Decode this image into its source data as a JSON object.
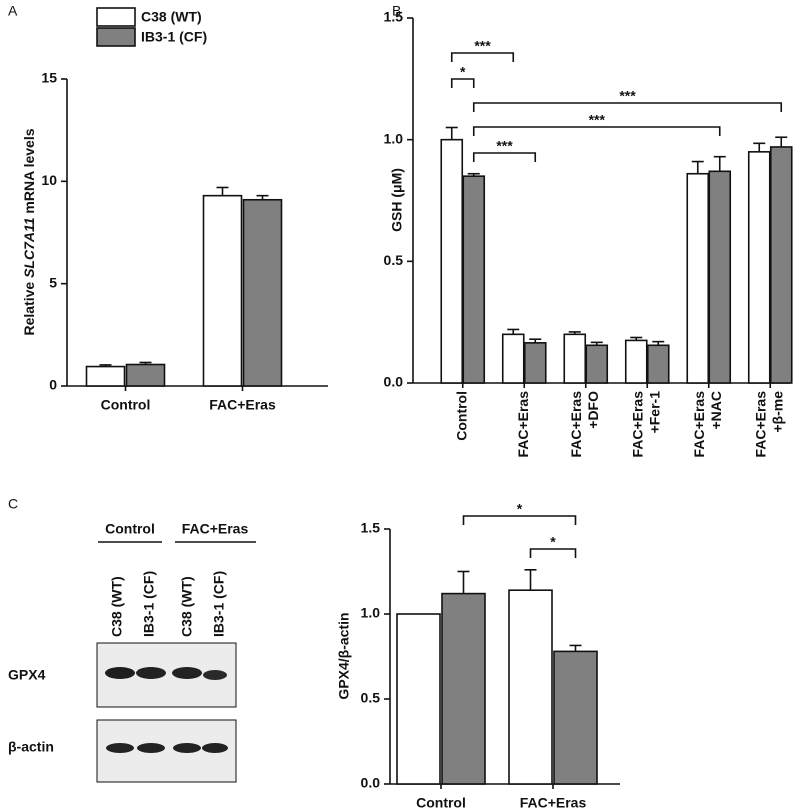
{
  "panel_labels": [
    "A",
    "B",
    "C"
  ],
  "chart_data": [
    {
      "type": "bar",
      "ylabel_parts": [
        "Relative ",
        "SLC7A11",
        " mRNA levels"
      ],
      "categories": [
        "Control",
        "FAC+Eras"
      ],
      "series": [
        {
          "name": "C38 (WT)",
          "color": "#ffffff",
          "values": [
            0.95,
            9.3
          ],
          "errors": [
            0.08,
            0.4
          ]
        },
        {
          "name": "IB3-1 (CF)",
          "color": "#808080",
          "values": [
            1.05,
            9.1
          ],
          "errors": [
            0.1,
            0.2
          ]
        }
      ],
      "ylim": [
        0,
        15
      ],
      "yticks": [
        0,
        5,
        10,
        15
      ]
    },
    {
      "type": "bar",
      "ylabel": "GSH (μM)",
      "categories": [
        [
          "Control"
        ],
        [
          "FAC+Eras"
        ],
        [
          "FAC+Eras",
          "+DFO"
        ],
        [
          "FAC+Eras",
          "+Fer-1"
        ],
        [
          "FAC+Eras",
          "+NAC"
        ],
        [
          "FAC+Eras",
          "+β-me"
        ]
      ],
      "series": [
        {
          "color": "#ffffff",
          "values": [
            1.0,
            0.2,
            0.2,
            0.175,
            0.86,
            0.95
          ],
          "errors": [
            0.05,
            0.02,
            0.01,
            0.012,
            0.05,
            0.035
          ]
        },
        {
          "color": "#808080",
          "values": [
            0.85,
            0.165,
            0.155,
            0.155,
            0.87,
            0.97
          ],
          "errors": [
            0.01,
            0.015,
            0.012,
            0.015,
            0.06,
            0.04
          ]
        }
      ],
      "ylim": [
        0,
        1.5
      ],
      "yticks": [
        {
          "value": 0,
          "label": "0.0"
        },
        0.5,
        {
          "value": 1,
          "label": "1.0"
        },
        1.5
      ],
      "annotations": [
        "***",
        "*",
        "***",
        "***",
        "***"
      ]
    },
    {
      "type": "bar",
      "ylabel": "GPX4/β-actin",
      "categories": [
        "Control",
        "FAC+Eras"
      ],
      "series": [
        {
          "color": "#ffffff",
          "values": [
            1.0,
            1.14
          ],
          "errors": [
            null,
            0.12
          ]
        },
        {
          "color": "#808080",
          "values": [
            1.12,
            0.78
          ],
          "errors": [
            0.13,
            0.035
          ]
        }
      ],
      "ylim": [
        0,
        1.5
      ],
      "yticks": [
        {
          "value": 0,
          "label": "0.0"
        },
        0.5,
        {
          "value": 1,
          "label": "1.0"
        },
        1.5
      ],
      "annotations": [
        "*",
        "*"
      ]
    }
  ],
  "blot": {
    "groups": [
      "Control",
      "FAC+Eras"
    ],
    "lanes": [
      "C38 (WT)",
      "IB3-1 (CF)",
      "C38 (WT)",
      "IB3-1 (CF)"
    ],
    "rows": [
      "GPX4",
      "β-actin"
    ]
  }
}
